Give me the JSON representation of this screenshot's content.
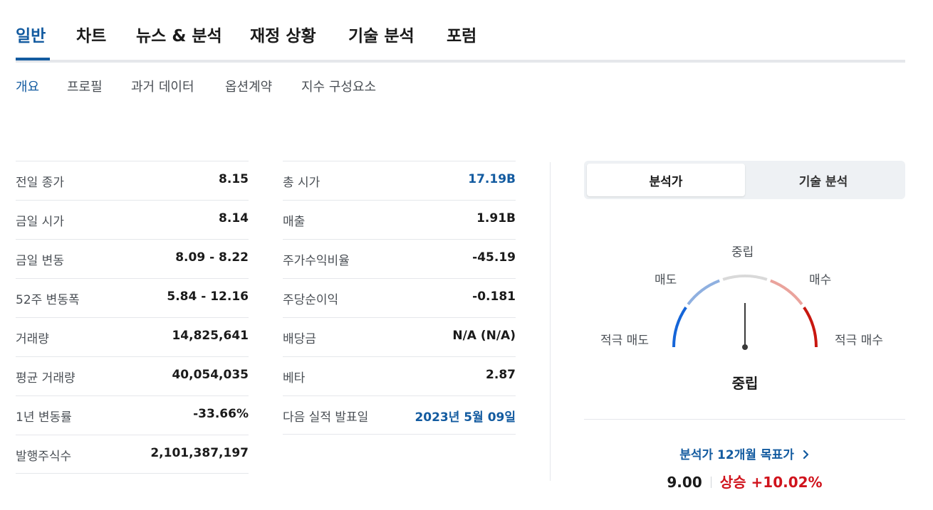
{
  "main_tabs": [
    {
      "label": "일반",
      "active": true
    },
    {
      "label": "차트"
    },
    {
      "label": "뉴스 & 분석"
    },
    {
      "label": "재정 상황"
    },
    {
      "label": "기술 분석"
    },
    {
      "label": "포럼"
    }
  ],
  "sub_tabs": [
    {
      "label": "개요",
      "active": true
    },
    {
      "label": "프로필"
    },
    {
      "label": "과거 데이터"
    },
    {
      "label": "옵션계약"
    },
    {
      "label": "지수 구성요소"
    }
  ],
  "stats_left": [
    {
      "label": "전일 종가",
      "value": "8.15"
    },
    {
      "label": "금일 시가",
      "value": "8.14"
    },
    {
      "label": "금일 변동",
      "value": "8.09 - 8.22"
    },
    {
      "label": "52주 변동폭",
      "value": "5.84 - 12.16"
    },
    {
      "label": "거래량",
      "value": "14,825,641"
    },
    {
      "label": "평균 거래량",
      "value": "40,054,035"
    },
    {
      "label": "1년 변동률",
      "value": "-33.66%"
    },
    {
      "label": "발행주식수",
      "value": "2,101,387,197"
    }
  ],
  "stats_right": [
    {
      "label": "총 시가",
      "value": "17.19B",
      "link": true
    },
    {
      "label": "매출",
      "value": "1.91B"
    },
    {
      "label": "주가수익비율",
      "value": "-45.19"
    },
    {
      "label": "주당순이익",
      "value": "-0.181"
    },
    {
      "label": "배당금",
      "value": "N/A (N/A)"
    },
    {
      "label": "베타",
      "value": "2.87"
    },
    {
      "label": "다음 실적 발표일",
      "value": "2023년 5월 09일",
      "link": true
    }
  ],
  "sentiment": {
    "toggle": {
      "analyst": "분석가",
      "technical": "기술 분석",
      "active": "analyst"
    },
    "labels": {
      "strong_sell": "적극 매도",
      "sell": "매도",
      "neutral": "중립",
      "buy": "매수",
      "strong_buy": "적극 매수"
    },
    "result": "중립",
    "needle": "neutral",
    "colors": {
      "strong_sell": "#1565d8",
      "sell": "#8fb0e0",
      "neutral": "#d9d9d9",
      "buy": "#eaa39c",
      "strong_buy": "#c8170f"
    }
  },
  "target": {
    "link_label": "분석가 12개월 목표가",
    "price": "9.00",
    "direction": "상승",
    "change": "+10.02%"
  },
  "colors": {
    "accent": "#135ba0",
    "up": "#d0131c"
  }
}
